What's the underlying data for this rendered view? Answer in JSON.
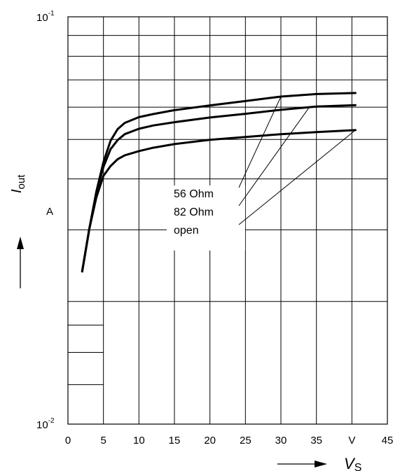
{
  "chart_data": {
    "type": "line",
    "title": "",
    "xlabel": {
      "main": "V",
      "sub": "S"
    },
    "ylabel": {
      "main": "I",
      "sub": "out"
    },
    "xunit": "V",
    "yunit": "A",
    "xlim": [
      0,
      45
    ],
    "ylim": [
      0.01,
      0.1
    ],
    "yscale": "log",
    "grid": true,
    "x_ticks": [
      "0",
      "5",
      "10",
      "15",
      "20",
      "25",
      "30",
      "35",
      "V",
      "45"
    ],
    "y_ticks": [
      {
        "value": 0.1,
        "base": "10",
        "exp": "-1"
      },
      {
        "value": 0.01,
        "base": "10",
        "exp": "-2"
      }
    ],
    "legend_placement": "center",
    "series": [
      {
        "name": "56 Ohm",
        "x": [
          2,
          3,
          4,
          5,
          6,
          7,
          8,
          10,
          12,
          15,
          20,
          25,
          30,
          35,
          40.5
        ],
        "y": [
          0.0237,
          0.0301,
          0.0372,
          0.044,
          0.0496,
          0.053,
          0.0549,
          0.0567,
          0.0577,
          0.059,
          0.0606,
          0.0621,
          0.0637,
          0.0646,
          0.065
        ]
      },
      {
        "name": "82 Ohm",
        "x": [
          2,
          3,
          4,
          5,
          6,
          7,
          8,
          10,
          12,
          15,
          20,
          25,
          30,
          35,
          40.5
        ],
        "y": [
          0.0237,
          0.0301,
          0.037,
          0.0428,
          0.0473,
          0.0498,
          0.0515,
          0.0531,
          0.0541,
          0.0551,
          0.0566,
          0.0578,
          0.0591,
          0.0602,
          0.0607
        ]
      },
      {
        "name": "open",
        "x": [
          2,
          3,
          4,
          5,
          6,
          7,
          8,
          10,
          12,
          15,
          20,
          25,
          30,
          35,
          40.5
        ],
        "y": [
          0.0237,
          0.0301,
          0.036,
          0.0407,
          0.043,
          0.0447,
          0.0457,
          0.0468,
          0.0477,
          0.0487,
          0.0499,
          0.0507,
          0.0515,
          0.0521,
          0.0527
        ]
      }
    ]
  }
}
